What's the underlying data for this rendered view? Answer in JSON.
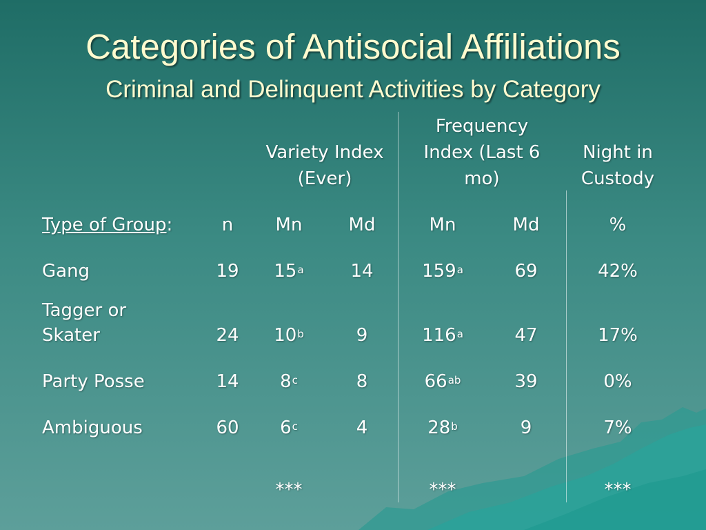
{
  "slide": {
    "title": "Categories of Antisocial Affiliations",
    "subtitle": "Criminal and Delinquent Activities by Category"
  },
  "headers": {
    "variety": [
      "Variety Index",
      "(Ever)"
    ],
    "frequency": [
      "Frequency",
      "Index (Last 6",
      "mo)"
    ],
    "custody": [
      "Night in",
      "Custody"
    ]
  },
  "columns": {
    "group": "Type of Group",
    "group_colon": ":",
    "n": "n",
    "var_mn": "Mn",
    "var_md": "Md",
    "freq_mn": "Mn",
    "freq_md": "Md",
    "pct": "%"
  },
  "rows": [
    {
      "group": [
        "Gang"
      ],
      "n": "19",
      "var_mn": "15",
      "var_mn_sup": "a",
      "var_md": "14",
      "freq_mn": "159",
      "freq_mn_sup": "a",
      "freq_md": "69",
      "pct": "42%"
    },
    {
      "group": [
        "Tagger or",
        "Skater"
      ],
      "n": "24",
      "var_mn": "10",
      "var_mn_sup": "b",
      "var_md": "9",
      "freq_mn": "116",
      "freq_mn_sup": "a",
      "freq_md": "47",
      "pct": "17%"
    },
    {
      "group": [
        "Party Posse"
      ],
      "n": "14",
      "var_mn": "8",
      "var_mn_sup": "c",
      "var_md": "8",
      "freq_mn": "66",
      "freq_mn_sup": "ab",
      "freq_md": "39",
      "pct": "0%"
    },
    {
      "group": [
        "Ambiguous"
      ],
      "n": "60",
      "var_mn": "6",
      "var_mn_sup": "c",
      "var_md": "4",
      "freq_mn": "28",
      "freq_mn_sup": "b",
      "freq_md": "9",
      "pct": "7%"
    }
  ],
  "significance": {
    "variety": "***",
    "frequency": "***",
    "custody": "***"
  }
}
